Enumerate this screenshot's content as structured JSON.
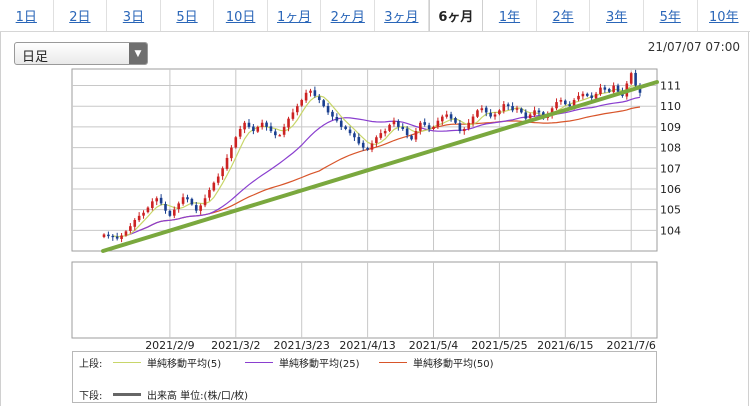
{
  "tabs": [
    {
      "label": "1日",
      "active": false
    },
    {
      "label": "2日",
      "active": false
    },
    {
      "label": "3日",
      "active": false
    },
    {
      "label": "5日",
      "active": false
    },
    {
      "label": "10日",
      "active": false
    },
    {
      "label": "1ヶ月",
      "active": false
    },
    {
      "label": "2ヶ月",
      "active": false
    },
    {
      "label": "3ヶ月",
      "active": false
    },
    {
      "label": "6ヶ月",
      "active": true
    },
    {
      "label": "1年",
      "active": false
    },
    {
      "label": "2年",
      "active": false
    },
    {
      "label": "3年",
      "active": false
    },
    {
      "label": "5年",
      "active": false
    },
    {
      "label": "10年",
      "active": false
    }
  ],
  "period_select": {
    "value": "日足"
  },
  "timestamp": "21/07/07 07:00",
  "legend": {
    "upper_label": "上段:",
    "lower_label": "下段:",
    "ma5": "単純移動平均(5)",
    "ma25": "単純移動平均(25)",
    "ma50": "単純移動平均(50)",
    "volume": "出来高 単位:(株/口/枚)"
  },
  "colors": {
    "up": "#cc2222",
    "down": "#1a3f8f",
    "ma5": "#c8d66a",
    "ma25": "#8a3fcf",
    "ma50": "#d8552a",
    "trendline": "#7aa83e",
    "grid": "#c8c8c8",
    "link": "#2a66b8"
  },
  "chart_data": {
    "type": "candlestick",
    "y_ticks": [
      "104",
      "105",
      "106",
      "107",
      "108",
      "109",
      "110",
      "111"
    ],
    "ylim": [
      103,
      111.8
    ],
    "x_ticks": [
      "2021/2/9",
      "2021/3/2",
      "2021/3/23",
      "2021/4/13",
      "2021/5/4",
      "2021/5/25",
      "2021/6/15",
      "2021/7/6"
    ],
    "x_tick_index": [
      15,
      30,
      45,
      60,
      75,
      90,
      105,
      120
    ],
    "n_points": 123,
    "close": [
      103.8,
      103.72,
      103.67,
      103.6,
      103.75,
      103.95,
      104.2,
      104.5,
      104.7,
      104.85,
      105.1,
      105.4,
      105.55,
      105.3,
      104.95,
      104.7,
      105.0,
      105.3,
      105.6,
      105.5,
      105.25,
      104.95,
      105.2,
      105.55,
      105.95,
      106.3,
      106.6,
      107.0,
      107.5,
      108.0,
      108.5,
      108.9,
      109.2,
      109.0,
      108.8,
      109.0,
      109.2,
      109.0,
      108.8,
      108.6,
      108.6,
      109.0,
      109.4,
      109.7,
      110.0,
      110.3,
      110.65,
      110.75,
      110.5,
      110.3,
      110.0,
      109.7,
      109.5,
      109.3,
      109.0,
      108.9,
      108.7,
      108.5,
      108.2,
      108.0,
      107.9,
      108.2,
      108.5,
      108.7,
      108.8,
      109.1,
      109.3,
      109.0,
      108.9,
      108.6,
      108.4,
      108.8,
      109.2,
      109.1,
      108.9,
      109.0,
      109.3,
      109.5,
      109.6,
      109.4,
      109.2,
      108.8,
      108.9,
      109.2,
      109.5,
      109.8,
      109.9,
      109.7,
      109.5,
      109.6,
      109.8,
      110.1,
      110.0,
      109.8,
      109.9,
      109.7,
      109.4,
      109.6,
      109.8,
      109.7,
      109.4,
      109.6,
      109.9,
      110.2,
      110.3,
      110.1,
      110.0,
      110.3,
      110.5,
      110.6,
      110.5,
      110.4,
      110.6,
      110.9,
      110.8,
      110.7,
      111.0,
      110.7,
      110.5,
      111.1,
      111.6,
      111.0,
      110.65
    ]
  }
}
